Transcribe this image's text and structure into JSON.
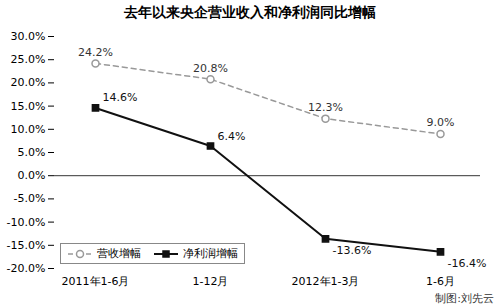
{
  "chart_data": {
    "type": "line",
    "title": "去年以来央企营业收入和净利润同比增幅",
    "categories": [
      "2011年1-6月",
      "1-12月",
      "2012年1-3月",
      "1-6月"
    ],
    "series": [
      {
        "name": "营收增幅",
        "color": "#999999",
        "marker": "open_circle",
        "line_style": "dashed",
        "values": [
          24.2,
          20.8,
          12.3,
          9.0
        ],
        "value_labels": [
          "24.2%",
          "20.8%",
          "12.3%",
          "9.0%"
        ]
      },
      {
        "name": "净利润增幅",
        "color": "#111111",
        "marker": "square",
        "line_style": "solid",
        "values": [
          14.6,
          6.4,
          -13.6,
          -16.4
        ],
        "value_labels": [
          "14.6%",
          "6.4%",
          "-13.6%",
          "-16.4%"
        ]
      }
    ],
    "ylim": [
      -20.0,
      30.0
    ],
    "yticks": [
      {
        "value": -20.0,
        "label": "-20.0%"
      },
      {
        "value": -15.0,
        "label": "-15.0%"
      },
      {
        "value": -10.0,
        "label": "-10.0%"
      },
      {
        "value": -5.0,
        "label": "-5.0%"
      },
      {
        "value": 0.0,
        "label": "0.0%"
      },
      {
        "value": 5.0,
        "label": "5.0%"
      },
      {
        "value": 10.0,
        "label": "10.0%"
      },
      {
        "value": 15.0,
        "label": "15.0%"
      },
      {
        "value": 20.0,
        "label": "20.0%"
      },
      {
        "value": 25.0,
        "label": "25.0%"
      },
      {
        "value": 30.0,
        "label": "30.0%"
      }
    ],
    "grid": false,
    "legend": "lower left",
    "data_labels": true,
    "annotations": [
      "制图:刘先云"
    ]
  }
}
